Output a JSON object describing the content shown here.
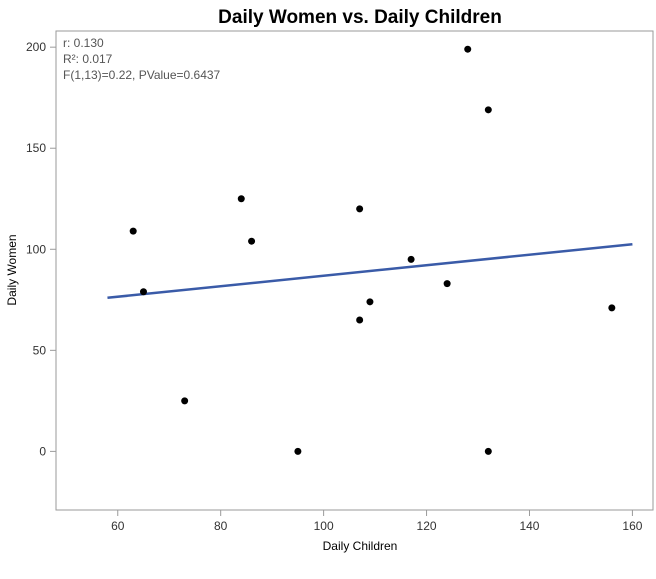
{
  "chart_data": {
    "type": "scatter",
    "title": "Daily Women vs. Daily Children",
    "xlabel": "Daily Children",
    "ylabel": "Daily Women",
    "xlim": [
      48,
      164
    ],
    "ylim": [
      -29,
      208
    ],
    "xticks": [
      60,
      80,
      100,
      120,
      140,
      160
    ],
    "yticks": [
      0,
      50,
      100,
      150,
      200
    ],
    "points": [
      {
        "x": 63,
        "y": 109
      },
      {
        "x": 65,
        "y": 79
      },
      {
        "x": 73,
        "y": 25
      },
      {
        "x": 84,
        "y": 125
      },
      {
        "x": 86,
        "y": 104
      },
      {
        "x": 95,
        "y": 0
      },
      {
        "x": 107,
        "y": 120
      },
      {
        "x": 107,
        "y": 65
      },
      {
        "x": 109,
        "y": 74
      },
      {
        "x": 117,
        "y": 95
      },
      {
        "x": 124,
        "y": 83
      },
      {
        "x": 128,
        "y": 199
      },
      {
        "x": 132,
        "y": 169
      },
      {
        "x": 132,
        "y": 0
      },
      {
        "x": 156,
        "y": 71
      }
    ],
    "fit_line": {
      "x": [
        58,
        160
      ],
      "y": [
        76,
        102.5
      ],
      "color": "#3a5ba8"
    },
    "grid": false,
    "annotations": [
      "r: 0.130",
      "R²: 0.017",
      "F(1,13)=0.22, PValue=0.6437"
    ]
  }
}
